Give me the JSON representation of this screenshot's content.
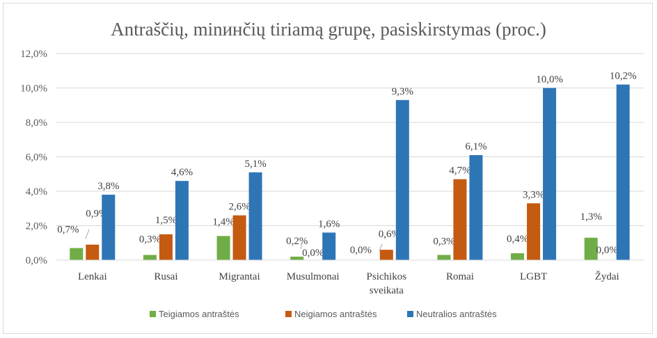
{
  "chart_data": {
    "type": "bar",
    "title": "Antraščių, minинčių tiriamą grupę, pasiskirstymas (proc.)",
    "categories": [
      "Lenkai",
      "Rusai",
      "Migrantai",
      "Musulmonai",
      "Psichikos sveikata",
      "Romai",
      "LGBT",
      "Žydai"
    ],
    "series": [
      {
        "name": "Teigiamos antraštės",
        "color": "#70ad47",
        "values": [
          0.7,
          0.3,
          1.4,
          0.2,
          0.0,
          0.3,
          0.4,
          1.3
        ],
        "labels": [
          "0,7%",
          "0,3%",
          "1,4%",
          "0,2%",
          "0,0%",
          "0,3%",
          "0,4%",
          "1,3%"
        ]
      },
      {
        "name": "Neigiamos antraštės",
        "color": "#c55a11",
        "values": [
          0.9,
          1.5,
          2.6,
          0.0,
          0.6,
          4.7,
          3.3,
          0.0
        ],
        "labels": [
          "0,9%",
          "1,5%",
          "2,6%",
          "0,0%",
          "0,6%",
          "4,7%",
          "3,3%",
          "0,0%"
        ]
      },
      {
        "name": "Neutralios antraštės",
        "color": "#2e75b6",
        "values": [
          3.8,
          4.6,
          5.1,
          1.6,
          9.3,
          6.1,
          10.0,
          10.2
        ],
        "labels": [
          "3,8%",
          "4,6%",
          "5,1%",
          "1,6%",
          "9,3%",
          "6,1%",
          "10,0%",
          "10,2%"
        ]
      }
    ],
    "ylim": [
      0,
      12
    ],
    "yticks": [
      "0,0%",
      "2,0%",
      "4,0%",
      "6,0%",
      "8,0%",
      "10,0%",
      "12,0%"
    ],
    "grid": true,
    "legend": "bottom"
  }
}
